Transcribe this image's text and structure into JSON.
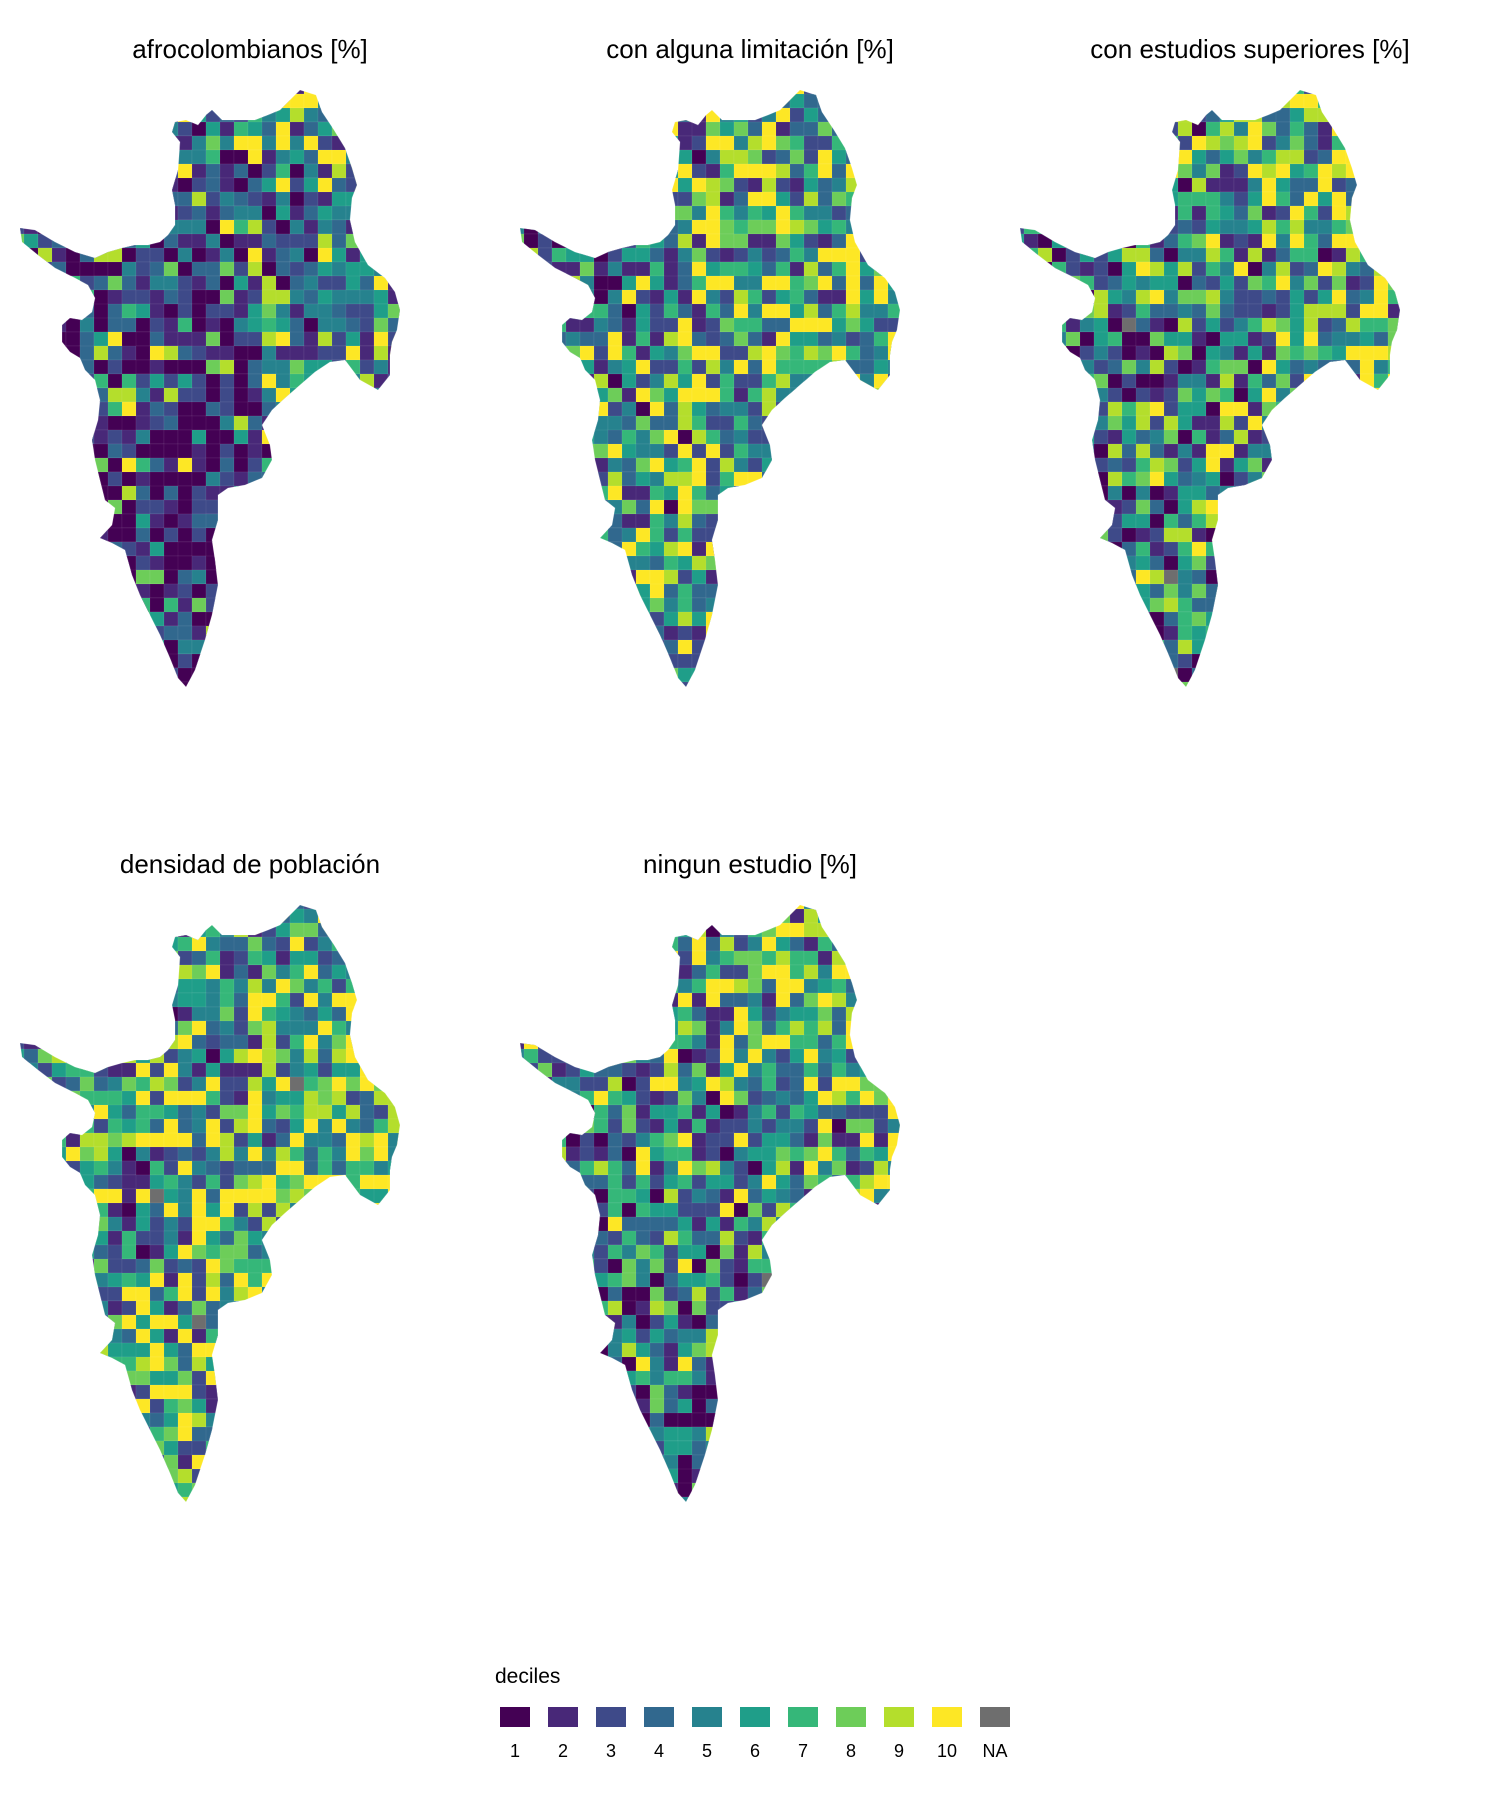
{
  "maps": [
    {
      "title": "afrocolombianos [%]",
      "palette_bias": [
        6,
        4,
        4,
        3,
        2,
        1,
        1,
        1,
        1,
        1,
        0
      ]
    },
    {
      "title": "con alguna limitación [%]",
      "palette_bias": [
        5,
        4,
        3,
        3,
        3,
        3,
        2,
        2,
        2,
        2,
        0
      ]
    },
    {
      "title": "con estudios superiores [%]",
      "palette_bias": [
        3,
        3,
        3,
        3,
        3,
        3,
        3,
        3,
        3,
        3,
        0
      ]
    },
    {
      "title": "densidad de población",
      "palette_bias": [
        4,
        4,
        3,
        3,
        3,
        3,
        3,
        2,
        2,
        2,
        0
      ]
    },
    {
      "title": "ningun estudio [%]",
      "palette_bias": [
        3,
        3,
        4,
        4,
        3,
        3,
        3,
        3,
        2,
        2,
        0
      ]
    }
  ],
  "legend": {
    "title": "deciles",
    "keys": [
      {
        "label": "1",
        "color": "#440154"
      },
      {
        "label": "2",
        "color": "#482878"
      },
      {
        "label": "3",
        "color": "#3E4A89"
      },
      {
        "label": "4",
        "color": "#31688E"
      },
      {
        "label": "5",
        "color": "#26828E"
      },
      {
        "label": "6",
        "color": "#1F9E89"
      },
      {
        "label": "7",
        "color": "#35B779"
      },
      {
        "label": "8",
        "color": "#6DCD59"
      },
      {
        "label": "9",
        "color": "#B4DE2C"
      },
      {
        "label": "10",
        "color": "#FDE725"
      },
      {
        "label": "NA",
        "color": "#6E6E6E"
      }
    ]
  }
}
